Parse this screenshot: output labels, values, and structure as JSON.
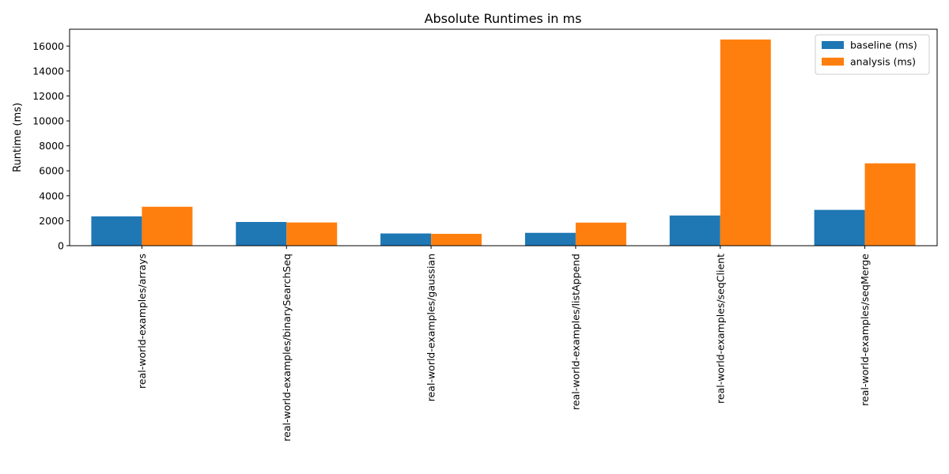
{
  "chart_data": {
    "type": "bar",
    "title": "Absolute Runtimes in ms",
    "xlabel": "",
    "ylabel": "Runtime (ms)",
    "categories": [
      "real-world-examples/arrays",
      "real-world-examples/binarySearchSeq",
      "real-world-examples/gaussian",
      "real-world-examples/listAppend",
      "real-world-examples/seqClient",
      "real-world-examples/seqMerge"
    ],
    "series": [
      {
        "name": "baseline (ms)",
        "values": [
          2350,
          1900,
          980,
          1030,
          2420,
          2870
        ],
        "color": "#1f77b4"
      },
      {
        "name": "analysis (ms)",
        "values": [
          3120,
          1860,
          950,
          1850,
          16520,
          6600
        ],
        "color": "#ff7f0e"
      }
    ],
    "ylim": [
      0,
      17346
    ],
    "yticks": [
      0,
      2000,
      4000,
      6000,
      8000,
      10000,
      12000,
      14000,
      16000
    ],
    "ytick_labels": [
      "0",
      "2000",
      "4000",
      "6000",
      "8000",
      "10000",
      "12000",
      "14000",
      "16000"
    ],
    "grid": false,
    "legend_position": "top-right"
  }
}
